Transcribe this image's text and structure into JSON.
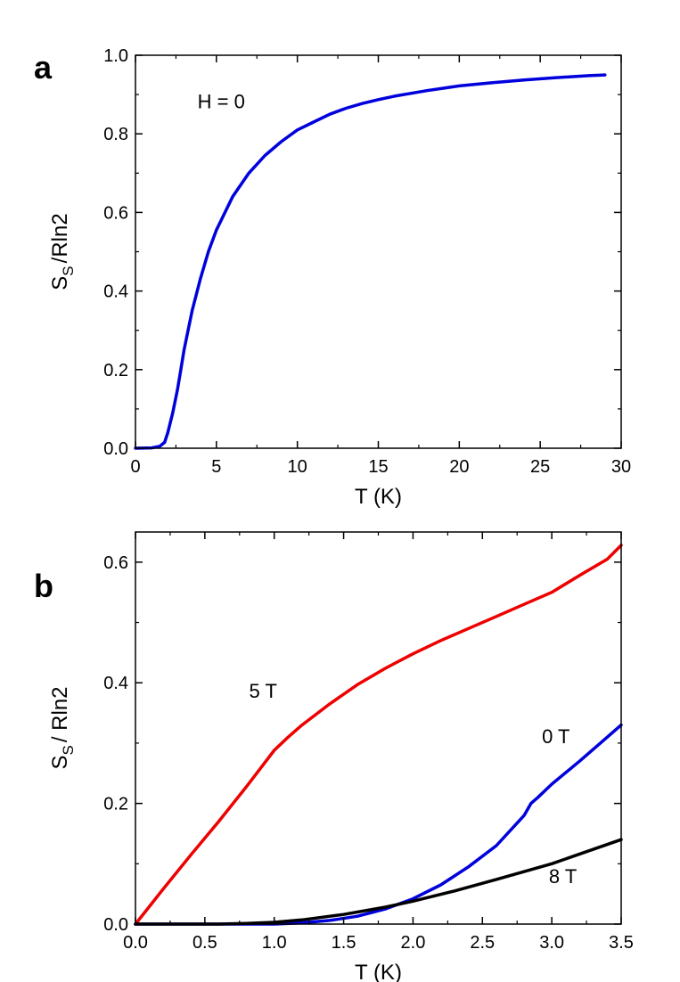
{
  "panels": [
    {
      "letter": "a"
    },
    {
      "letter": "b"
    }
  ],
  "chart_data": [
    {
      "type": "line",
      "xlabel": "T (K)",
      "ylabel_main": "S",
      "ylabel_sub": "S",
      "ylabel_rest": "/Rln2",
      "xlim": [
        0,
        30
      ],
      "ylim": [
        0,
        1.0
      ],
      "xticks": [
        0,
        5,
        10,
        15,
        20,
        25,
        30
      ],
      "yticks": [
        0.0,
        0.2,
        0.4,
        0.6,
        0.8,
        1.0
      ],
      "xtick_labels": [
        "0",
        "5",
        "10",
        "15",
        "20",
        "25",
        "30"
      ],
      "ytick_labels": [
        "0.0",
        "0.2",
        "0.4",
        "0.6",
        "0.8",
        "1.0"
      ],
      "annotations": [
        {
          "text": "H = 0",
          "x": 5.3,
          "y": 0.865
        }
      ],
      "grid": false,
      "series": [
        {
          "color": "#0000dd",
          "x": [
            0,
            1,
            1.5,
            1.8,
            2.0,
            2.3,
            2.6,
            2.8,
            3.0,
            3.5,
            4,
            4.5,
            5,
            6,
            7,
            8,
            9,
            10,
            11,
            12,
            13,
            14,
            15,
            16,
            17,
            18,
            20,
            22,
            24,
            26,
            28,
            29
          ],
          "y": [
            0,
            0.001,
            0.005,
            0.015,
            0.04,
            0.09,
            0.15,
            0.2,
            0.25,
            0.35,
            0.43,
            0.5,
            0.555,
            0.64,
            0.7,
            0.745,
            0.78,
            0.81,
            0.83,
            0.85,
            0.865,
            0.877,
            0.887,
            0.896,
            0.903,
            0.91,
            0.922,
            0.93,
            0.937,
            0.943,
            0.948,
            0.95
          ]
        }
      ]
    },
    {
      "type": "line",
      "xlabel": "T (K)",
      "ylabel_main": "S",
      "ylabel_sub": "S",
      "ylabel_rest": "/ Rln2",
      "xlim": [
        0,
        3.5
      ],
      "ylim": [
        0,
        0.65
      ],
      "xticks": [
        0,
        0.5,
        1.0,
        1.5,
        2.0,
        2.5,
        3.0,
        3.5
      ],
      "yticks": [
        0.0,
        0.2,
        0.4,
        0.6
      ],
      "xtick_labels": [
        "0.0",
        "0.5",
        "1.0",
        "1.5",
        "2.0",
        "2.5",
        "3.0",
        "3.5"
      ],
      "ytick_labels": [
        "0.0",
        "0.2",
        "0.4",
        "0.6"
      ],
      "annotations": [
        {
          "text": "5 T",
          "x": 0.92,
          "y": 0.375
        },
        {
          "text": "0 T",
          "x": 3.03,
          "y": 0.3
        },
        {
          "text": "8 T",
          "x": 3.08,
          "y": 0.068
        }
      ],
      "grid": false,
      "series": [
        {
          "name": "5 T",
          "color": "#ee0000",
          "x": [
            0,
            0.2,
            0.4,
            0.6,
            0.8,
            0.9,
            1.0,
            1.1,
            1.2,
            1.4,
            1.6,
            1.8,
            2.0,
            2.2,
            2.4,
            2.6,
            2.8,
            3.0,
            3.2,
            3.4,
            3.5
          ],
          "y": [
            0,
            0.058,
            0.115,
            0.17,
            0.228,
            0.258,
            0.288,
            0.31,
            0.33,
            0.365,
            0.397,
            0.424,
            0.448,
            0.47,
            0.49,
            0.51,
            0.53,
            0.55,
            0.578,
            0.605,
            0.628
          ]
        },
        {
          "name": "0 T",
          "color": "#0000dd",
          "x": [
            0,
            1.0,
            1.2,
            1.4,
            1.6,
            1.8,
            2.0,
            2.2,
            2.4,
            2.6,
            2.8,
            2.85,
            2.9,
            3.0,
            3.2,
            3.4,
            3.5
          ],
          "y": [
            0,
            0.0,
            0.002,
            0.006,
            0.013,
            0.025,
            0.042,
            0.065,
            0.095,
            0.13,
            0.18,
            0.2,
            0.21,
            0.232,
            0.27,
            0.31,
            0.33
          ]
        },
        {
          "name": "8 T",
          "color": "#000000",
          "x": [
            0,
            0.6,
            0.8,
            1.0,
            1.2,
            1.5,
            1.8,
            2.0,
            2.3,
            2.6,
            3.0,
            3.5
          ],
          "y": [
            0,
            0.0,
            0.001,
            0.003,
            0.007,
            0.016,
            0.028,
            0.038,
            0.055,
            0.074,
            0.1,
            0.14
          ]
        }
      ]
    }
  ]
}
